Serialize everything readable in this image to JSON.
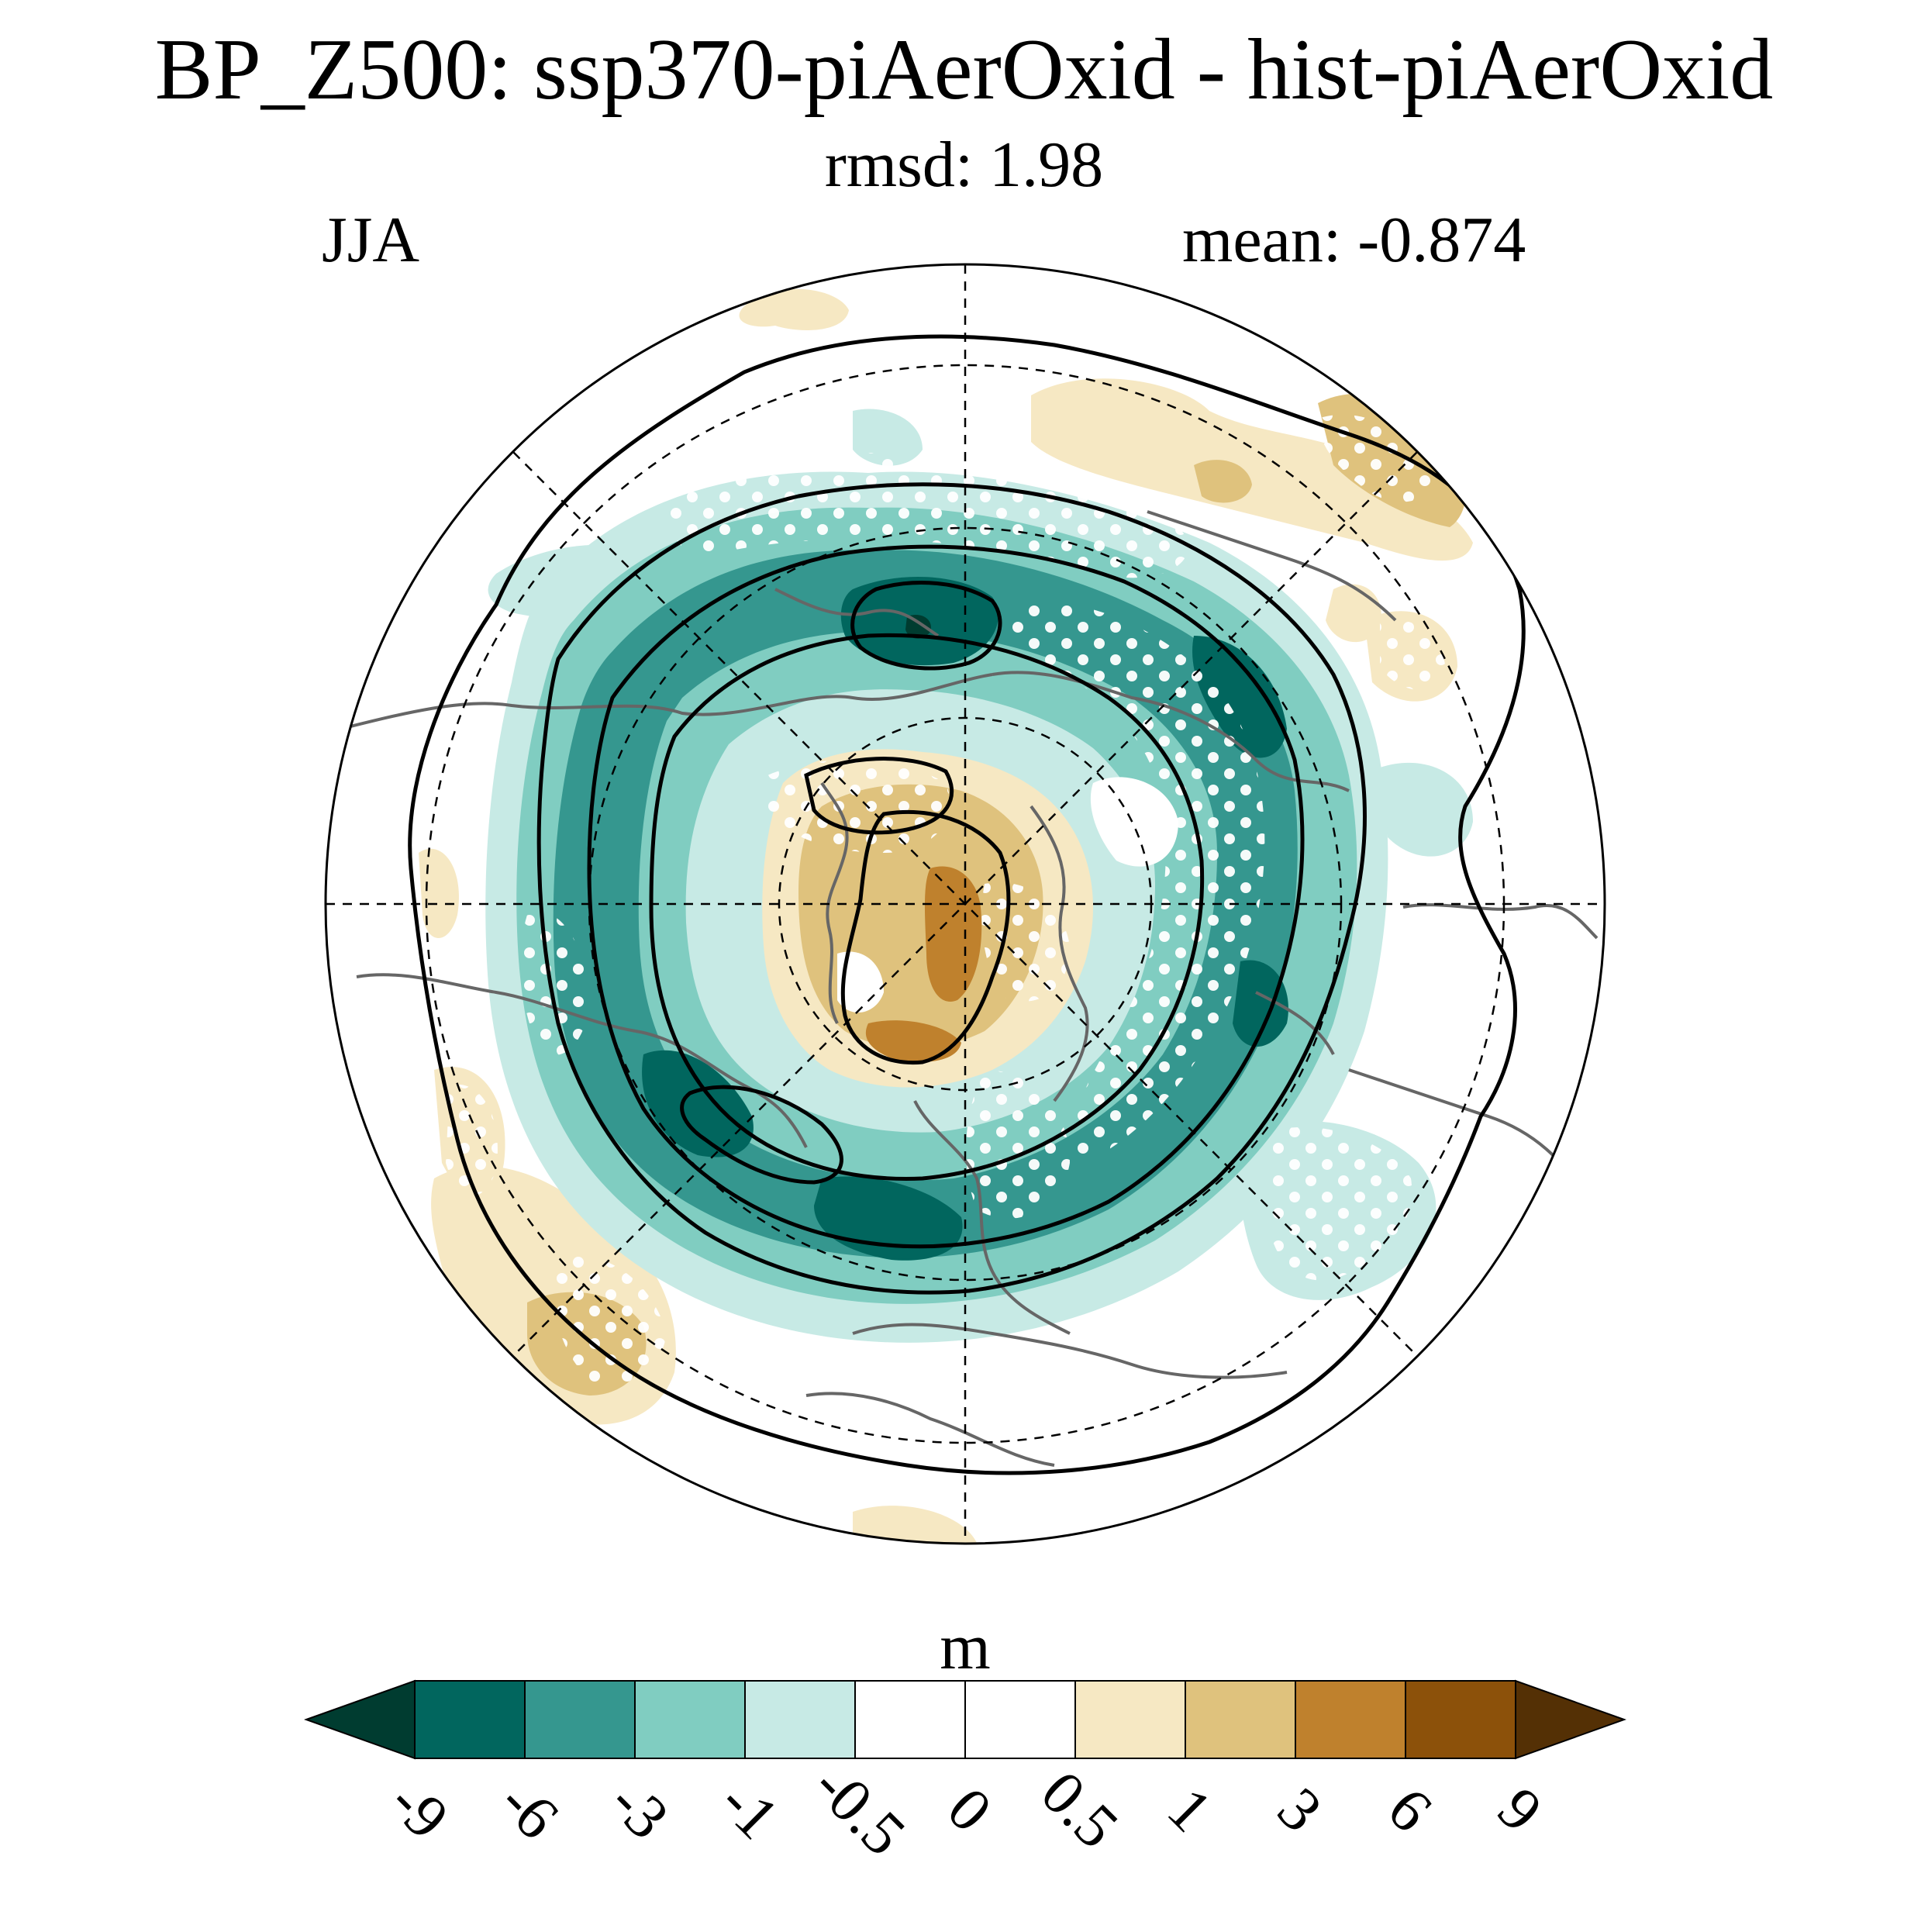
{
  "title": "BP_Z500: ssp370-piAerOxid - hist-piAerOxid",
  "subtitle": "rmsd: 1.98",
  "season": "JJA",
  "mean": "mean: -0.874",
  "units": "m",
  "colorbar": {
    "ticks": [
      "-9",
      "-6",
      "-3",
      "-1",
      "-0.5",
      "0",
      "0.5",
      "1",
      "3",
      "6",
      "9"
    ],
    "colors": [
      "#003c30",
      "#01665e",
      "#35978f",
      "#80cdc1",
      "#c7eae5",
      "#ffffff",
      "#ffffff",
      "#f6e8c3",
      "#dfc27d",
      "#bf812d",
      "#8c510a",
      "#543005"
    ]
  },
  "map": {
    "projection": "north-polar-stereographic",
    "land_color": "#666666",
    "contour_color": "#000000",
    "stipple_color": "#ffffff"
  }
}
